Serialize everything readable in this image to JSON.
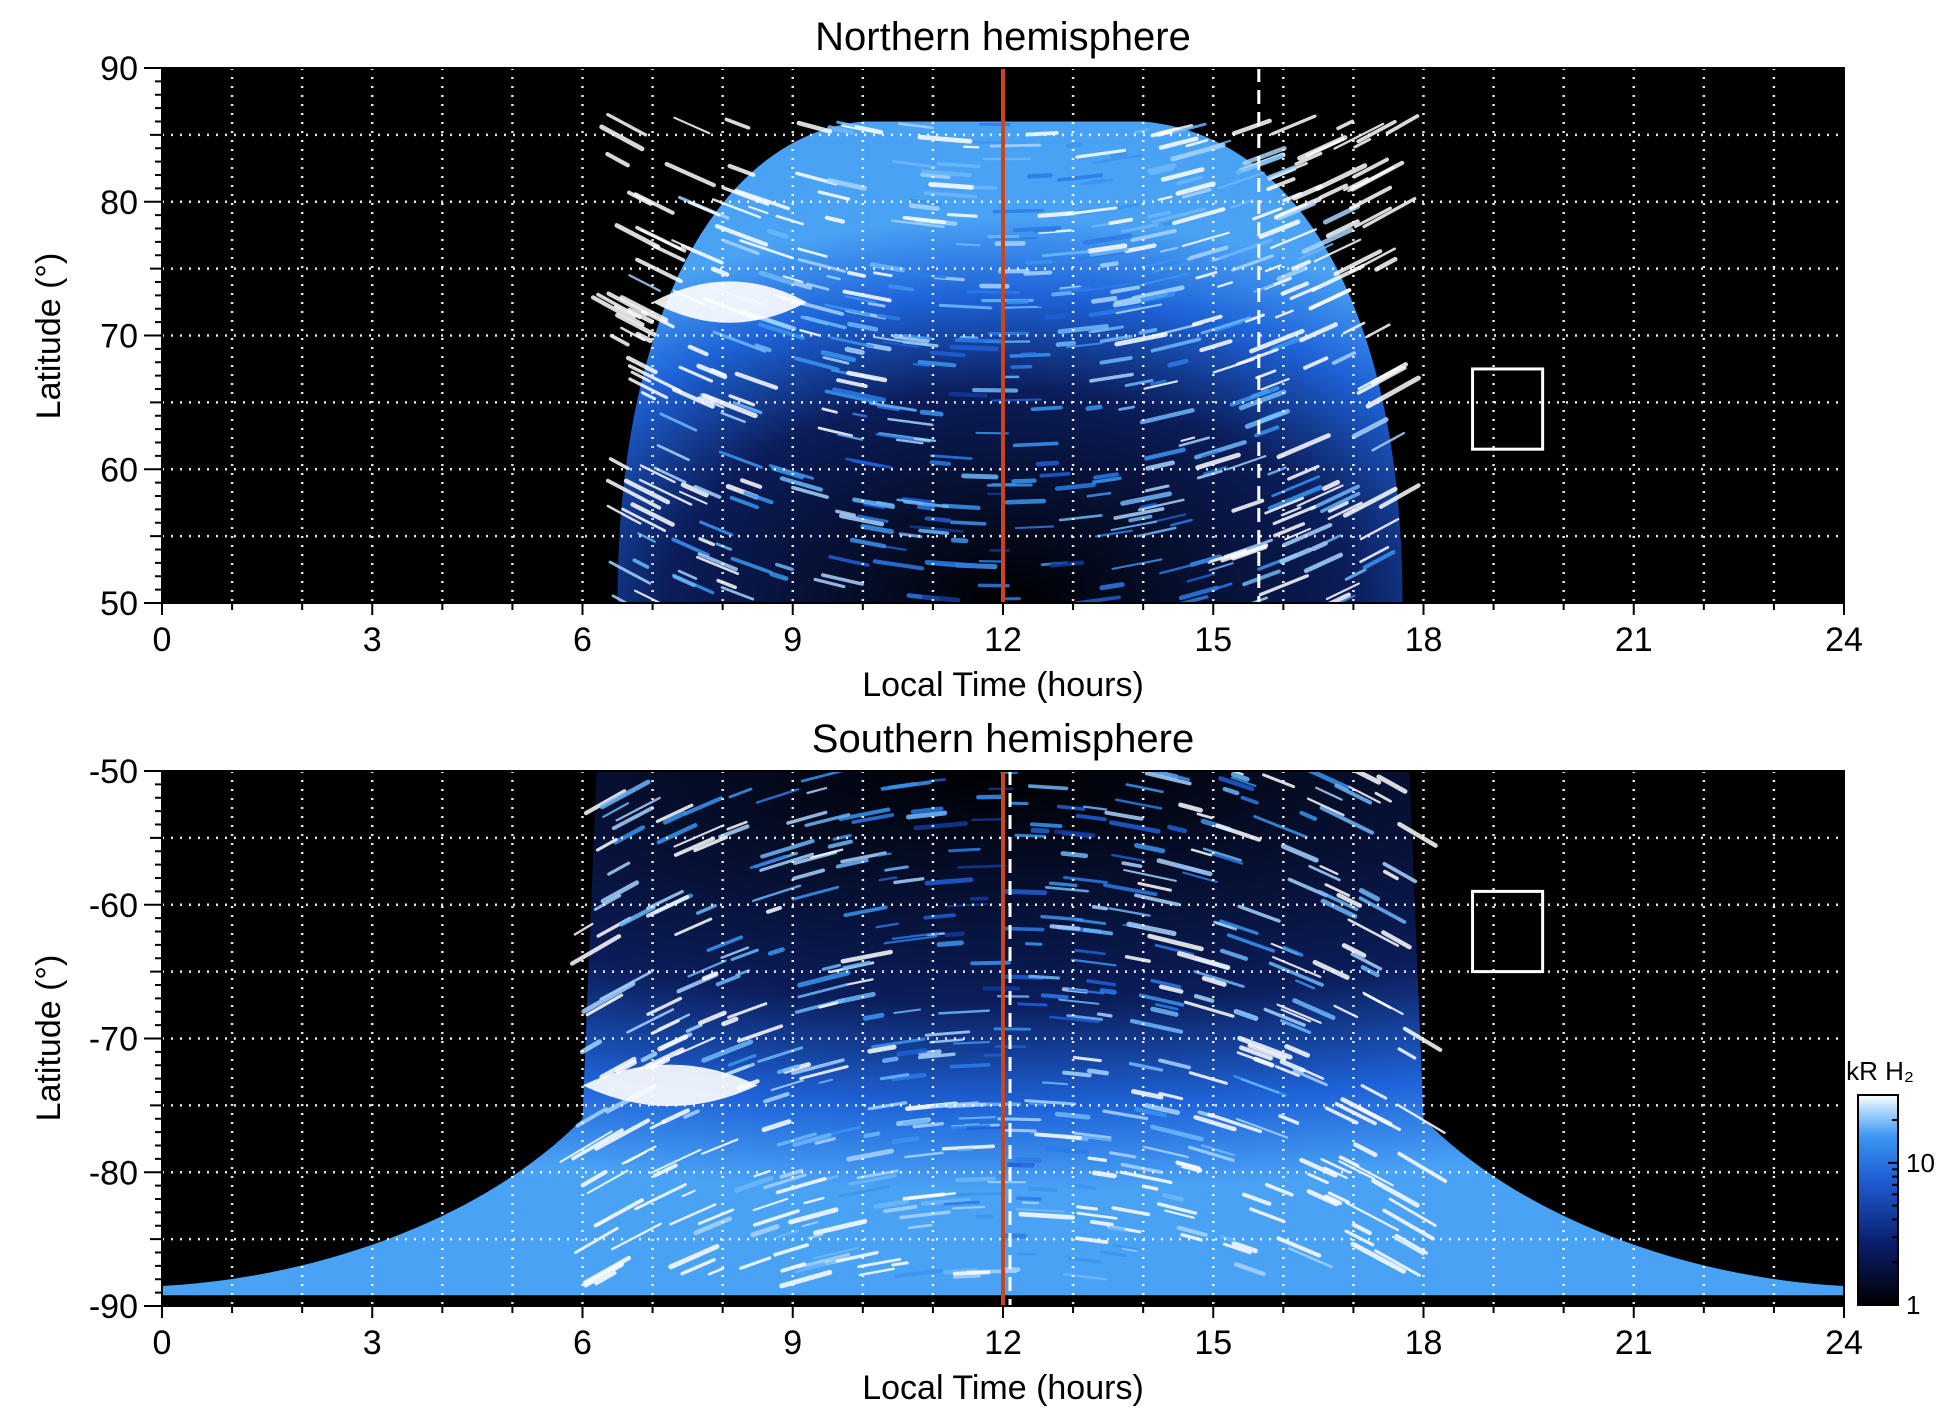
{
  "chart_data": [
    {
      "type": "heatmap",
      "title": "Northern hemisphere",
      "xlabel": "Local Time (hours)",
      "ylabel": "Latitude (°)",
      "xlim": [
        0,
        24
      ],
      "ylim": [
        50,
        90
      ],
      "xticks": [
        "0",
        "3",
        "6",
        "9",
        "12",
        "15",
        "18",
        "21",
        "24"
      ],
      "yticks": [
        "50",
        "60",
        "70",
        "80",
        "90"
      ],
      "grid": true,
      "colormap": [
        "#000000",
        "#0a1f6e",
        "#1f5fd6",
        "#3a95f0",
        "#a8d4ff",
        "#ffffff"
      ],
      "emission_lt_range": [
        6.5,
        17.7
      ],
      "bright_region": {
        "lt": [
          7.0,
          9.2
        ],
        "lat": [
          70,
          75
        ]
      },
      "noon_line_lt": 12.0,
      "noon_line_color": "#c8451e",
      "dashed_line_lt": 15.65,
      "box": {
        "lt": [
          18.7,
          19.7
        ],
        "lat": [
          61.5,
          67.5
        ]
      }
    },
    {
      "type": "heatmap",
      "title": "Southern hemisphere",
      "xlabel": "Local Time (hours)",
      "ylabel": "Latitude (°)",
      "xlim": [
        0,
        24
      ],
      "ylim": [
        -90,
        -50
      ],
      "xticks": [
        "0",
        "3",
        "6",
        "9",
        "12",
        "15",
        "18",
        "21",
        "24"
      ],
      "yticks": [
        "-50",
        "-60",
        "-70",
        "-80",
        "-90"
      ],
      "grid": true,
      "colormap": [
        "#000000",
        "#0a1f6e",
        "#1f5fd6",
        "#3a95f0",
        "#a8d4ff",
        "#ffffff"
      ],
      "emission_lt_range": [
        6.0,
        18.0
      ],
      "bright_region": {
        "lt": [
          6.0,
          8.5
        ],
        "lat": [
          -76,
          -71
        ]
      },
      "noon_line_lt": 12.0,
      "noon_line_color": "#c8451e",
      "dashed_line_lt": 12.1,
      "box": {
        "lt": [
          18.7,
          19.7
        ],
        "lat": [
          -65,
          -59
        ]
      }
    }
  ],
  "colorbar": {
    "title": "kR H₂",
    "ticks": [
      "10",
      "1"
    ],
    "range": [
      1,
      30
    ],
    "scale": "log"
  }
}
